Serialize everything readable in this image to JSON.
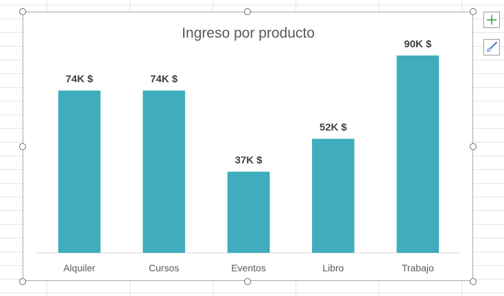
{
  "colors": {
    "bar": "#3fadbd",
    "title": "#595959",
    "tick": "#595959",
    "label": "#404040",
    "plus": "#2e9e3a",
    "brush": "#4472c4"
  },
  "icons": {
    "add_elements": "plus-icon",
    "chart_styles": "paintbrush-icon"
  },
  "chart_data": {
    "type": "bar",
    "title": "Ingreso por producto",
    "categories": [
      "Alquiler",
      "Cursos",
      "Eventos",
      "Libro",
      "Trabajo"
    ],
    "values": [
      74,
      74,
      37,
      52,
      90
    ],
    "data_labels": [
      "74K $",
      "74K $",
      "37K $",
      "52K $",
      "90K $"
    ],
    "xlabel": "",
    "ylabel": "",
    "ylim": [
      0,
      100
    ],
    "grid": false,
    "legend": "none"
  }
}
